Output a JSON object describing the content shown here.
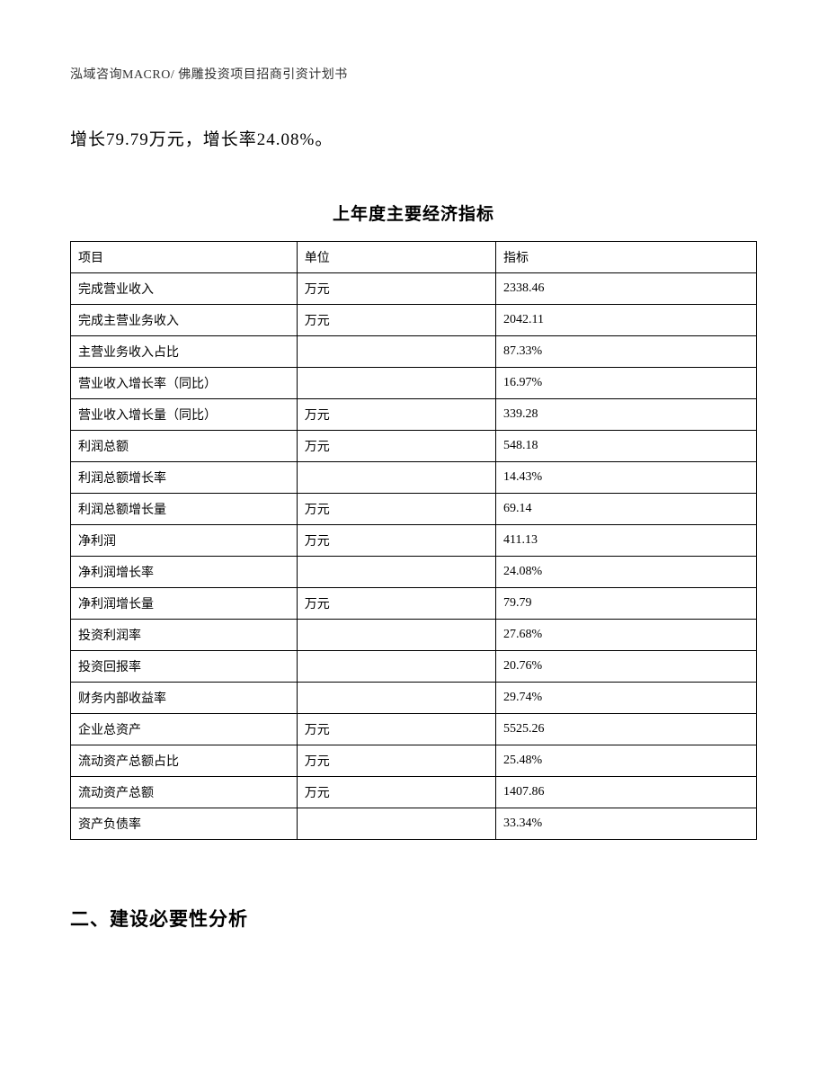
{
  "header": "泓域咨询MACRO/ 佛雕投资项目招商引资计划书",
  "body_text": "增长79.79万元，增长率24.08%。",
  "table": {
    "title": "上年度主要经济指标",
    "columns": [
      "项目",
      "单位",
      "指标"
    ],
    "rows": [
      {
        "name": "完成营业收入",
        "unit": "万元",
        "value": "2338.46"
      },
      {
        "name": "完成主营业务收入",
        "unit": "万元",
        "value": "2042.11"
      },
      {
        "name": "主营业务收入占比",
        "unit": "",
        "value": "87.33%"
      },
      {
        "name": "营业收入增长率（同比）",
        "unit": "",
        "value": "16.97%"
      },
      {
        "name": "营业收入增长量（同比）",
        "unit": "万元",
        "value": "339.28"
      },
      {
        "name": "利润总额",
        "unit": "万元",
        "value": "548.18"
      },
      {
        "name": "利润总额增长率",
        "unit": "",
        "value": "14.43%"
      },
      {
        "name": "利润总额增长量",
        "unit": "万元",
        "value": "69.14"
      },
      {
        "name": "净利润",
        "unit": "万元",
        "value": "411.13"
      },
      {
        "name": "净利润增长率",
        "unit": "",
        "value": "24.08%"
      },
      {
        "name": "净利润增长量",
        "unit": "万元",
        "value": "79.79"
      },
      {
        "name": "投资利润率",
        "unit": "",
        "value": "27.68%"
      },
      {
        "name": "投资回报率",
        "unit": "",
        "value": "20.76%"
      },
      {
        "name": "财务内部收益率",
        "unit": "",
        "value": "29.74%"
      },
      {
        "name": "企业总资产",
        "unit": "万元",
        "value": "5525.26"
      },
      {
        "name": "流动资产总额占比",
        "unit": "万元",
        "value": "25.48%"
      },
      {
        "name": "流动资产总额",
        "unit": "万元",
        "value": "1407.86"
      },
      {
        "name": "资产负债率",
        "unit": "",
        "value": "33.34%"
      }
    ]
  },
  "section_heading": "二、建设必要性分析"
}
